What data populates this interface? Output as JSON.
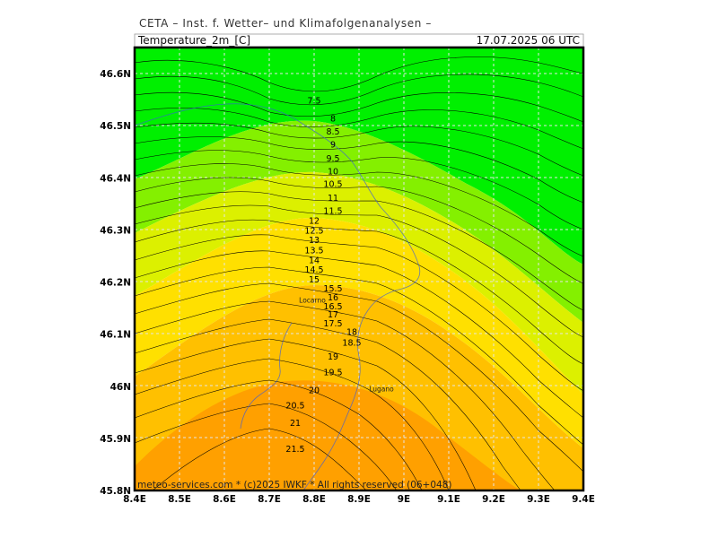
{
  "header": {
    "title": "CETA – Inst. f. Wetter– und Klimafolgenanalysen –"
  },
  "map": {
    "variable_label": "Temperature_2m_[C]",
    "datetime_label": "17.07.2025 06 UTC",
    "credit": "meteo-services.com * (c)2025 IWKF * All rights reserved (06+048)",
    "lat_ticks": [
      "46.6N",
      "46.5N",
      "46.4N",
      "46.3N",
      "46.2N",
      "46.1N",
      "46N",
      "45.9N",
      "45.8N"
    ],
    "lon_ticks": [
      "8.4E",
      "8.5E",
      "8.6E",
      "8.7E",
      "8.8E",
      "8.9E",
      "9E",
      "9.1E",
      "9.2E",
      "9.3E",
      "9.4E"
    ],
    "lat_range": [
      45.8,
      46.65
    ],
    "lon_range": [
      8.4,
      9.4
    ],
    "contour_labels": [
      {
        "text": "7.5",
        "lon": 8.8,
        "lat": 46.548
      },
      {
        "text": "8",
        "lon": 8.842,
        "lat": 46.513
      },
      {
        "text": "8.5",
        "lon": 8.842,
        "lat": 46.488
      },
      {
        "text": "9",
        "lon": 8.842,
        "lat": 46.463
      },
      {
        "text": "9.5",
        "lon": 8.842,
        "lat": 46.437
      },
      {
        "text": "10",
        "lon": 8.842,
        "lat": 46.412
      },
      {
        "text": "10.5",
        "lon": 8.842,
        "lat": 46.388
      },
      {
        "text": "11",
        "lon": 8.842,
        "lat": 46.361
      },
      {
        "text": "11.5",
        "lon": 8.842,
        "lat": 46.336
      },
      {
        "text": "12",
        "lon": 8.8,
        "lat": 46.317
      },
      {
        "text": "12.5",
        "lon": 8.8,
        "lat": 46.298
      },
      {
        "text": "13",
        "lon": 8.8,
        "lat": 46.28
      },
      {
        "text": "13.5",
        "lon": 8.8,
        "lat": 46.26
      },
      {
        "text": "14",
        "lon": 8.8,
        "lat": 46.241
      },
      {
        "text": "14.5",
        "lon": 8.8,
        "lat": 46.223
      },
      {
        "text": "15",
        "lon": 8.8,
        "lat": 46.204
      },
      {
        "text": "15.5",
        "lon": 8.842,
        "lat": 46.187
      },
      {
        "text": "16",
        "lon": 8.842,
        "lat": 46.17
      },
      {
        "text": "16.5",
        "lon": 8.842,
        "lat": 46.153
      },
      {
        "text": "17",
        "lon": 8.842,
        "lat": 46.137
      },
      {
        "text": "17.5",
        "lon": 8.842,
        "lat": 46.12
      },
      {
        "text": "18",
        "lon": 8.884,
        "lat": 46.104
      },
      {
        "text": "18.5",
        "lon": 8.884,
        "lat": 46.083
      },
      {
        "text": "19",
        "lon": 8.842,
        "lat": 46.056
      },
      {
        "text": "19.5",
        "lon": 8.842,
        "lat": 46.026
      },
      {
        "text": "20",
        "lon": 8.8,
        "lat": 45.992
      },
      {
        "text": "20.5",
        "lon": 8.758,
        "lat": 45.963
      },
      {
        "text": "21",
        "lon": 8.758,
        "lat": 45.929
      },
      {
        "text": "21.5",
        "lon": 8.758,
        "lat": 45.879
      }
    ],
    "cities": [
      {
        "text": "Locarno",
        "lon": 8.796,
        "lat": 46.166
      },
      {
        "text": "Lugano",
        "lon": 8.95,
        "lat": 45.995
      }
    ],
    "colors": {
      "cold": "#00f000",
      "cool": "#84f000",
      "mild": "#dcf000",
      "warm": "#ffe000",
      "warmer": "#ffc000",
      "hot": "#ffa000",
      "contour": "#000000",
      "grid": "#e6e6e6",
      "frame": "#000000",
      "lake": "#4a86e8"
    }
  }
}
